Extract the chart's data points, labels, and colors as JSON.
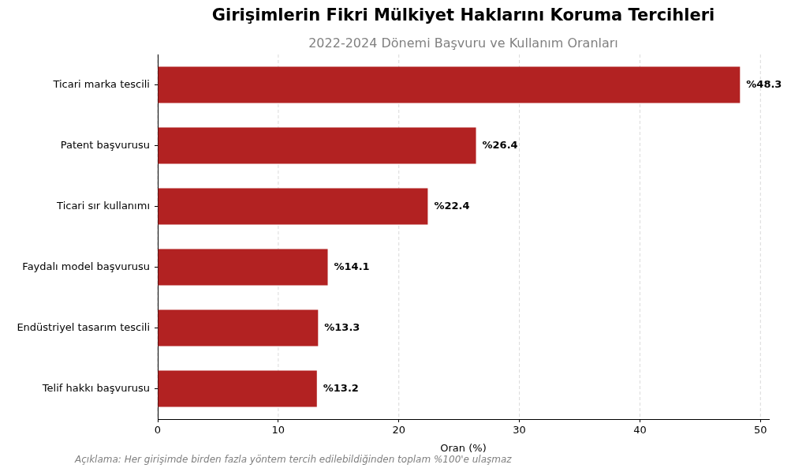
{
  "chart_data": {
    "type": "bar",
    "orientation": "horizontal",
    "title": "Girişimlerin Fikri Mülkiyet Haklarını Koruma Tercihleri",
    "subtitle": "2022-2024 Dönemi Başvuru ve Kullanım Oranları",
    "xlabel": "Oran (%)",
    "categories": [
      "Ticari marka tescili",
      "Patent başvurusu",
      "Ticari sır kullanımı",
      "Faydalı model başvurusu",
      "Endüstriyel tasarım tescili",
      "Telif hakkı başvurusu"
    ],
    "values": [
      48.3,
      26.4,
      22.4,
      14.1,
      13.3,
      13.2
    ],
    "value_labels": [
      "%48.3",
      "%26.4",
      "%22.4",
      "%14.1",
      "%13.3",
      "%13.2"
    ],
    "color": "#b22222",
    "xlim": [
      0,
      50.7
    ],
    "xticks": [
      0,
      10,
      20,
      30,
      40,
      50
    ],
    "grid": "x",
    "annotations": [
      "Açıklama: Her girişimde birden fazla yöntem tercih edilebildiğinden toplam %100'e ulaşmaz"
    ]
  }
}
